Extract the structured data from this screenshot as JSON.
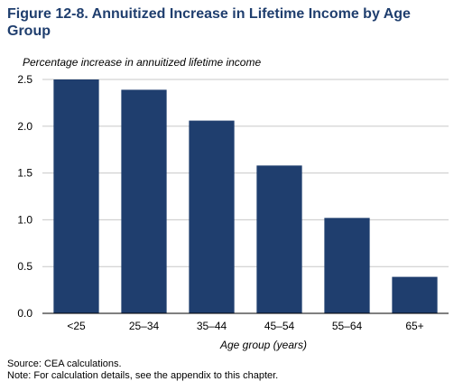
{
  "title": "Figure 12-8. Annuitized Increase in Lifetime Income by Age Group",
  "source": "Source: CEA calculations.",
  "note": "Note: For calculation details, see the appendix to this chapter.",
  "colors": {
    "bar": "#1f3e6e",
    "title": "#1f3e6e",
    "grid": "#c8c8c8",
    "axis": "#000000"
  },
  "chart_data": {
    "type": "bar",
    "ylabel": "Percentage increase in annuitized lifetime income",
    "xlabel": "Age group (years)",
    "categories": [
      "<25",
      "25–34",
      "35–44",
      "45–54",
      "55–64",
      "65+"
    ],
    "values": [
      2.5,
      2.39,
      2.06,
      1.58,
      1.02,
      0.39
    ],
    "ylim": [
      0,
      2.5
    ],
    "yticks": [
      "0.0",
      "0.5",
      "1.0",
      "1.5",
      "2.0",
      "2.5"
    ],
    "grid": true,
    "legend": "none"
  }
}
